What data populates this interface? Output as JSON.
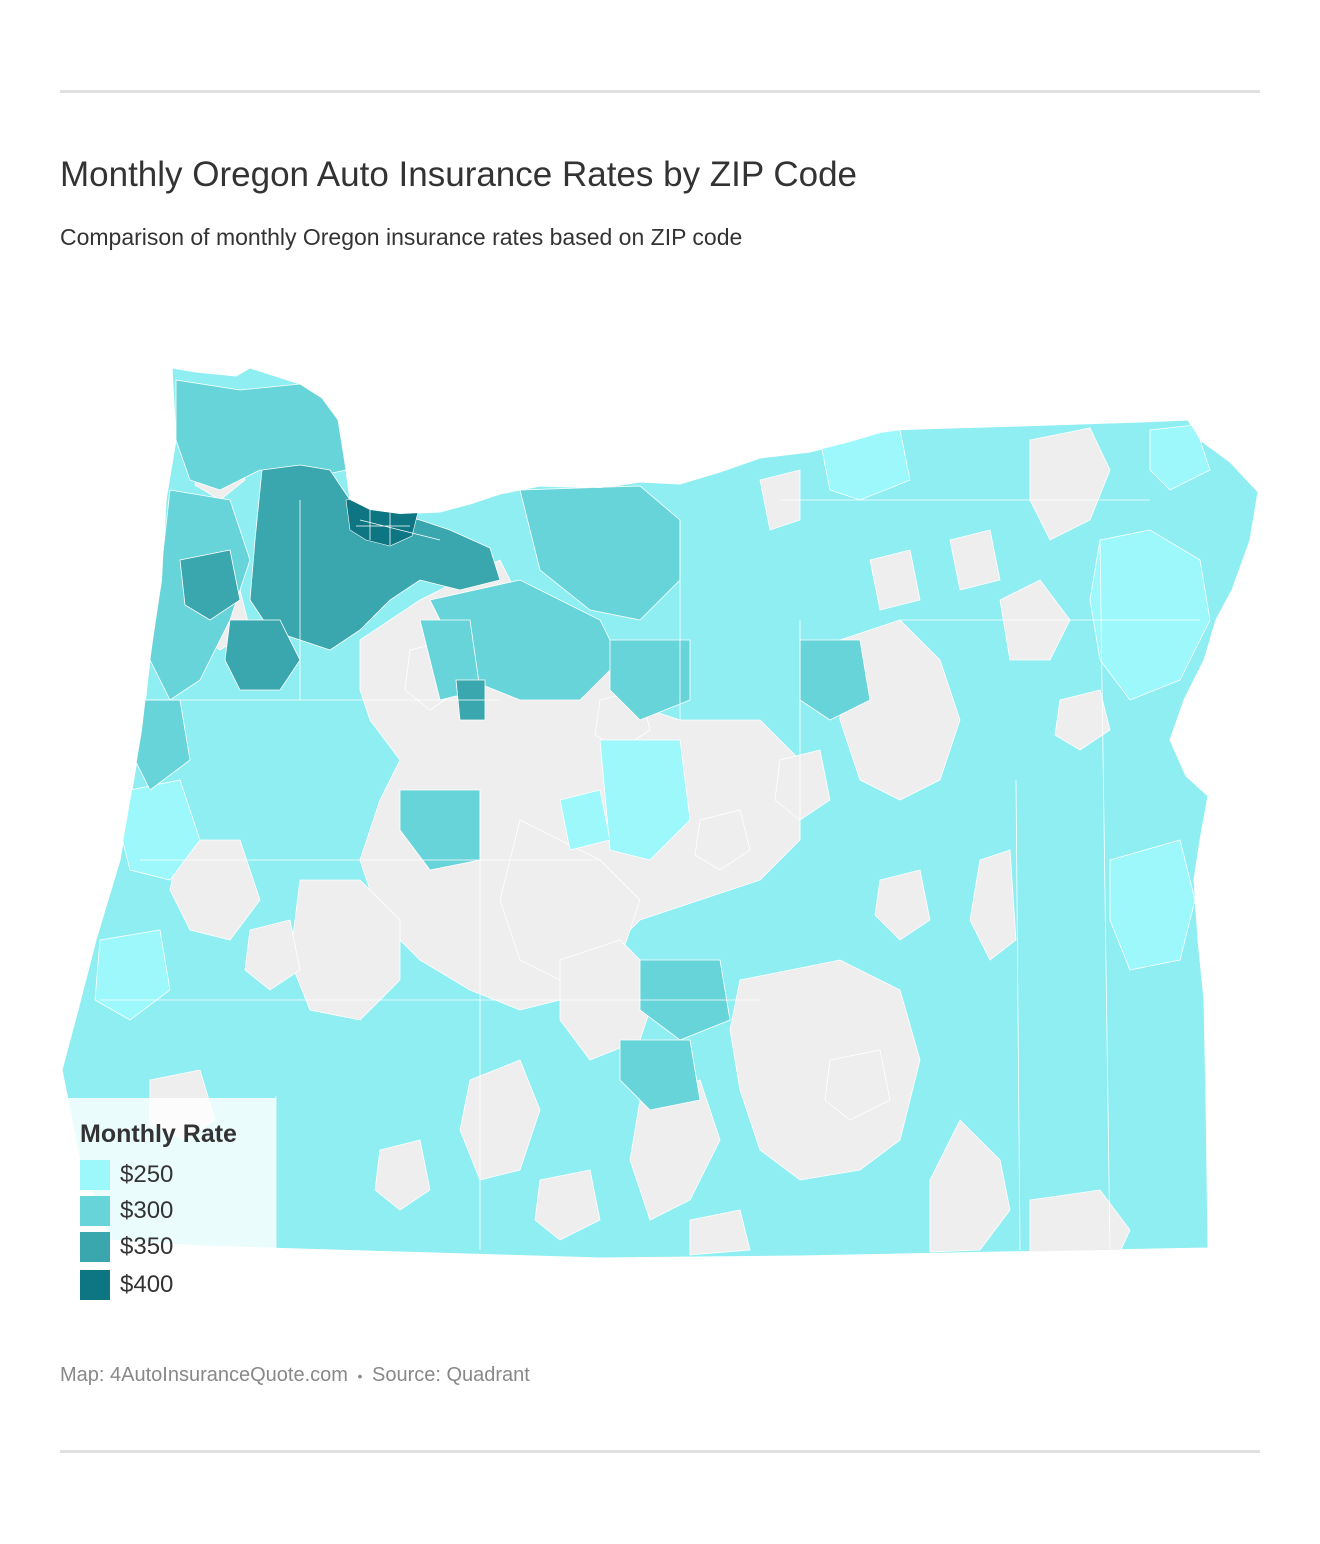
{
  "header": {
    "title": "Monthly Oregon Auto Insurance Rates by ZIP Code",
    "subtitle": "Comparison of monthly Oregon insurance rates based on ZIP code"
  },
  "map": {
    "region": "Oregon",
    "no_data_color": "#eeeeee",
    "state_fill_default": "#8eeef2"
  },
  "legend": {
    "title": "Monthly Rate",
    "items": [
      {
        "label": "$250",
        "color": "#9cf8fb"
      },
      {
        "label": "$300",
        "color": "#67d4d9"
      },
      {
        "label": "$350",
        "color": "#3aa6ad"
      },
      {
        "label": "$400",
        "color": "#0d7682"
      }
    ]
  },
  "footer": {
    "map_credit": "Map: 4AutoInsuranceQuote.com",
    "separator": "•",
    "source": "Source: Quadrant"
  }
}
